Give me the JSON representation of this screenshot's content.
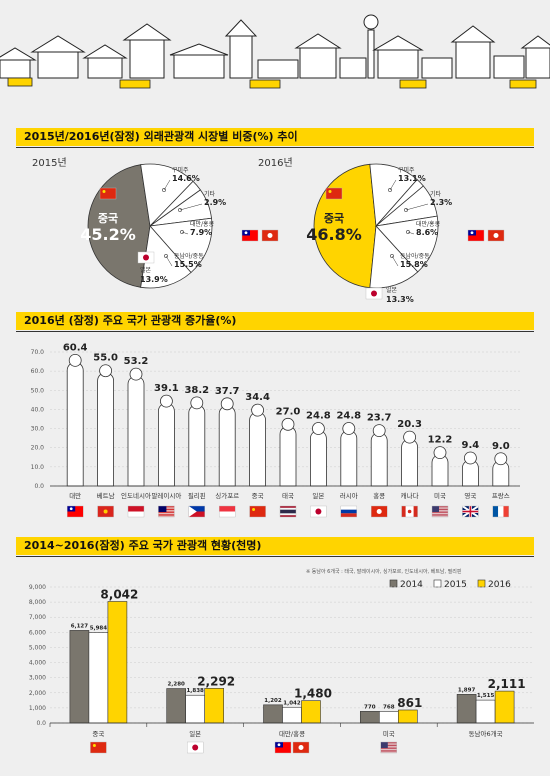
{
  "sections": {
    "s1_title": "2015년/2016년(잠정) 외래관광객 시장별 비중(%) 추이",
    "s2_title": "2016년 (잠정) 주요 국가 관광객 증가율(%)",
    "s3_title": "2014~2016(잠정)  주요 국가 관광객 현황(천명)"
  },
  "chart_data": [
    {
      "type": "pie",
      "title": "2015년",
      "highlight_label": "중국",
      "slices": [
        {
          "label": "중국",
          "value": 45.2,
          "display": "45.2%"
        },
        {
          "label": "구미주",
          "value": 14.6,
          "display": "14.6%"
        },
        {
          "label": "기타",
          "value": 2.9,
          "display": "2.9%"
        },
        {
          "label": "대만/홍콩",
          "value": 7.9,
          "display": "7.9%"
        },
        {
          "label": "동남아/중동",
          "value": 15.5,
          "display": "15.5%"
        },
        {
          "label": "일본",
          "value": 13.9,
          "display": "13.9%"
        }
      ],
      "color_highlight": "#7a766d"
    },
    {
      "type": "pie",
      "title": "2016년",
      "highlight_label": "중국",
      "slices": [
        {
          "label": "중국",
          "value": 46.8,
          "display": "46.8%"
        },
        {
          "label": "구미주",
          "value": 13.1,
          "display": "13.1%"
        },
        {
          "label": "기타",
          "value": 2.3,
          "display": "2.3%"
        },
        {
          "label": "대만/홍콩",
          "value": 8.6,
          "display": "8.6%"
        },
        {
          "label": "동남아/중동",
          "value": 15.8,
          "display": "15.8%"
        },
        {
          "label": "일본",
          "value": 13.3,
          "display": "13.3%"
        }
      ],
      "color_highlight": "#ffd400"
    },
    {
      "type": "bar",
      "ylim": [
        0,
        70
      ],
      "yticks": [
        "0.0",
        "10.0",
        "20.0",
        "30.0",
        "40.0",
        "50.0",
        "60.0",
        "70.0"
      ],
      "categories": [
        "대만",
        "베트남",
        "인도네시아",
        "말레이시아",
        "필리핀",
        "싱가포르",
        "중국",
        "태국",
        "일본",
        "러시아",
        "홍콩",
        "캐나다",
        "미국",
        "영국",
        "프랑스"
      ],
      "values": [
        60.4,
        55.0,
        53.2,
        39.1,
        38.2,
        37.7,
        34.4,
        27.0,
        24.8,
        24.8,
        23.7,
        20.3,
        12.2,
        9.4,
        9.0
      ],
      "labels": [
        "60.4",
        "55.0",
        "53.2",
        "39.1",
        "38.2",
        "37.7",
        "34.4",
        "27.0",
        "24.8",
        "24.8",
        "23.7",
        "20.3",
        "12.2",
        "9.4",
        "9.0"
      ],
      "grid": true
    },
    {
      "type": "bar",
      "note": "※ 동남아 6개국 : 태국, 말레이시아, 싱가포르, 인도네시아, 베트남, 필리핀",
      "ylim": [
        0,
        9000
      ],
      "yticks": [
        "0.0",
        "1,000",
        "2,000",
        "3,000",
        "4,000",
        "5,000",
        "6,000",
        "7,000",
        "8,000",
        "9,000"
      ],
      "categories": [
        "중국",
        "일본",
        "대만/홍콩",
        "미국",
        "동남아6개국"
      ],
      "series": [
        {
          "name": "2014",
          "color": "#7a766d",
          "values": [
            6127,
            2280,
            1202,
            770,
            1897
          ],
          "labels": [
            "6,127",
            "2,280",
            "1,202",
            "770",
            "1,897"
          ]
        },
        {
          "name": "2015",
          "color": "#ffffff",
          "values": [
            5984,
            1838,
            1042,
            768,
            1515
          ],
          "labels": [
            "5,984",
            "1,838",
            "1,042",
            "768",
            "1,515"
          ]
        },
        {
          "name": "2016",
          "color": "#ffd400",
          "values": [
            8042,
            2292,
            1480,
            861,
            2111
          ],
          "labels": [
            "8,042",
            "2,292",
            "1,480",
            "861",
            "2,111"
          ]
        }
      ],
      "legend": "top-right",
      "grid": true
    }
  ]
}
